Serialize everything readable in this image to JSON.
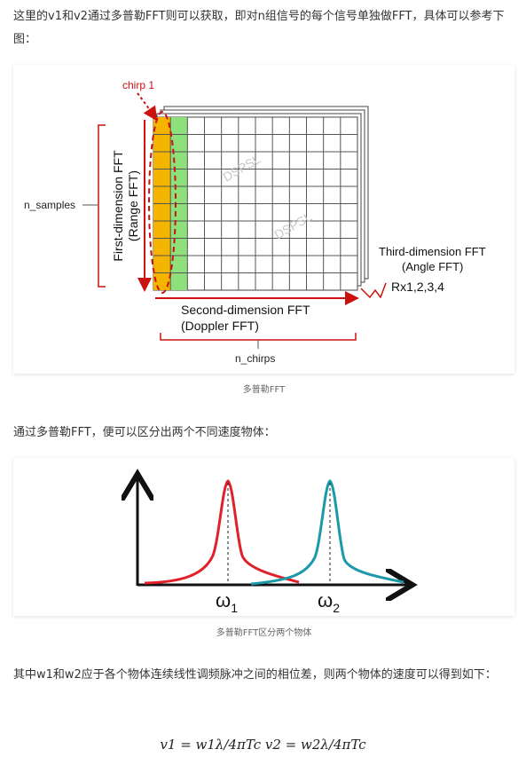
{
  "paragraphs": {
    "p1": "这里的v1和v2通过多普勒FFT则可以获取，即对n组信号的每个信号单独做FFT，具体可以参考下图：",
    "p2": "通过多普勒FFT，便可以区分出两个不同速度物体：",
    "p3": "其中w1和w2应于各个物体连续线性调频脉冲之间的相位差，则两个物体的速度可以得到如下："
  },
  "figure1": {
    "caption": "多普勒FFT",
    "chirp_label": "chirp 1",
    "samples_label": "n_samples",
    "first_dim_line1": "First-dimension FFT",
    "first_dim_line2": "(Range FFT)",
    "second_dim_line1": "Second-dimension FFT",
    "second_dim_line2": "(Doppler FFT)",
    "chirps_label": "n_chirps",
    "third_dim_line1": "Third-dimension FFT",
    "third_dim_line2": "(Angle FFT)",
    "rx_label": "Rx1,2,3,4",
    "watermark1": "DSPSL",
    "watermark2": "DSPSL",
    "colors": {
      "chirp": "#f5b400",
      "doppler": "#8ee07a",
      "arrow": "#cc1111"
    }
  },
  "figure2": {
    "caption": "多普勒FFT区分两个物体",
    "omega1_label": "ω",
    "omega1_sub": "1",
    "omega2_label": "ω",
    "omega2_sub": "2",
    "colors": {
      "peak1": "#e0202a",
      "peak2": "#1a9aa8"
    }
  },
  "formula": "v1 = w1λ/4πTc  v2 = w2λ/4πTc"
}
